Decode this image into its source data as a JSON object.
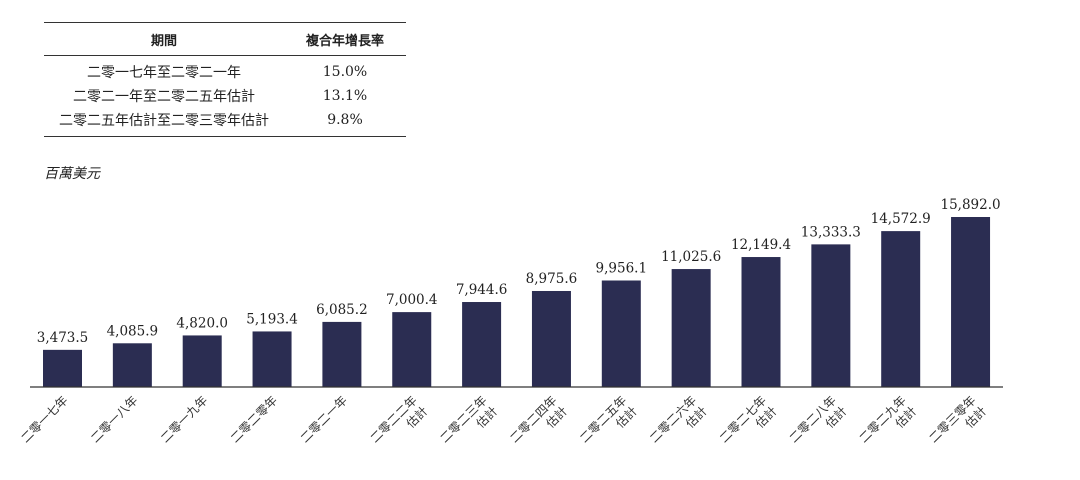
{
  "cagr_table": {
    "header": {
      "period": "期間",
      "cagr": "複合年增長率"
    },
    "rows": [
      {
        "period": "二零一七年至二零二一年",
        "cagr": "15.0%"
      },
      {
        "period": "二零二一年至二零二五年估計",
        "cagr": "13.1%"
      },
      {
        "period": "二零二五年估計至二零三零年估計",
        "cagr": "9.8%"
      }
    ]
  },
  "unit_label": "百萬美元",
  "chart_data": {
    "type": "bar",
    "title": "",
    "xlabel": "",
    "ylabel": "百萬美元",
    "ylim": [
      0,
      15892.0
    ],
    "bar_color": "#2b2d52",
    "categories": [
      [
        "二零一七年"
      ],
      [
        "二零一八年"
      ],
      [
        "二零一九年"
      ],
      [
        "二零二零年"
      ],
      [
        "二零二一年"
      ],
      [
        "二零二二年",
        "估計"
      ],
      [
        "二零二三年",
        "估計"
      ],
      [
        "二零二四年",
        "估計"
      ],
      [
        "二零二五年",
        "估計"
      ],
      [
        "二零二六年",
        "估計"
      ],
      [
        "二零二七年",
        "估計"
      ],
      [
        "二零二八年",
        "估計"
      ],
      [
        "二零二九年",
        "估計"
      ],
      [
        "二零三零年",
        "估計"
      ]
    ],
    "values": [
      3473.5,
      4085.9,
      4820.0,
      5193.4,
      6085.2,
      7000.4,
      7944.6,
      8975.6,
      9956.1,
      11025.6,
      12149.4,
      13333.3,
      14572.9,
      15892.0
    ],
    "value_labels": [
      "3,473.5",
      "4,085.9",
      "4,820.0",
      "5,193.4",
      "6,085.2",
      "7,000.4",
      "7,944.6",
      "8,975.6",
      "9,956.1",
      "11,025.6",
      "12,149.4",
      "13,333.3",
      "14,572.9",
      "15,892.0"
    ]
  }
}
